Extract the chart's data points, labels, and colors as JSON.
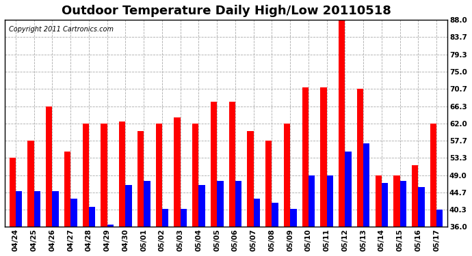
{
  "title": "Outdoor Temperature Daily High/Low 20110518",
  "copyright": "Copyright 2011 Cartronics.com",
  "dates": [
    "04/24",
    "04/25",
    "04/26",
    "04/27",
    "04/28",
    "04/29",
    "04/30",
    "05/01",
    "05/02",
    "05/03",
    "05/04",
    "05/05",
    "05/06",
    "05/07",
    "05/08",
    "05/09",
    "05/10",
    "05/11",
    "05/12",
    "05/13",
    "05/14",
    "05/15",
    "05/16",
    "05/17"
  ],
  "highs": [
    53.3,
    57.7,
    66.3,
    55.0,
    62.0,
    62.0,
    62.5,
    60.0,
    62.0,
    63.5,
    62.0,
    67.5,
    67.5,
    60.0,
    57.7,
    62.0,
    71.0,
    71.0,
    88.0,
    70.7,
    49.0,
    49.0,
    51.5,
    62.0
  ],
  "lows": [
    45.0,
    45.0,
    45.0,
    43.0,
    41.0,
    36.5,
    46.5,
    47.5,
    40.5,
    40.5,
    46.5,
    47.5,
    47.5,
    43.0,
    42.0,
    40.5,
    49.0,
    49.0,
    55.0,
    57.0,
    47.0,
    47.5,
    46.0,
    40.3
  ],
  "ylim": [
    36.0,
    88.0
  ],
  "ybase": 36.0,
  "yticks": [
    36.0,
    40.3,
    44.7,
    49.0,
    53.3,
    57.7,
    62.0,
    66.3,
    70.7,
    75.0,
    79.3,
    83.7,
    88.0
  ],
  "high_color": "#ff0000",
  "low_color": "#0000ff",
  "bar_width": 0.35,
  "bg_color": "#ffffff",
  "grid_color": "#aaaaaa",
  "title_fontsize": 13,
  "tick_fontsize": 7.5,
  "copyright_fontsize": 7
}
